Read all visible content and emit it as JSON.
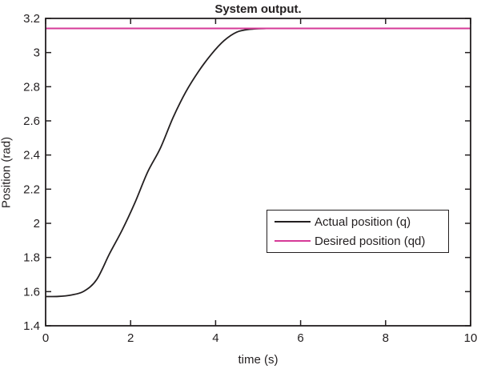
{
  "figure": {
    "title": "System output.",
    "xlabel": "time (s)",
    "ylabel": "Position (rad)"
  },
  "legend": {
    "items": [
      {
        "label": "Actual position (q)",
        "color": "#231f20"
      },
      {
        "label": "Desired position (qd)",
        "color": "#d63a97"
      }
    ]
  },
  "colors": {
    "axis": "#231f20",
    "actual_line": "#231f20",
    "desired_line": "#d63a97",
    "background": "#ffffff"
  },
  "chart_data": {
    "type": "line",
    "title": "System output.",
    "xlabel": "time (s)",
    "ylabel": "Position (rad)",
    "xlim": [
      0,
      10
    ],
    "ylim": [
      1.4,
      3.2
    ],
    "xticks": [
      0,
      2,
      4,
      6,
      8,
      10
    ],
    "yticks": [
      1.4,
      1.6,
      1.8,
      2,
      2.2,
      2.4,
      2.6,
      2.8,
      3,
      3.2
    ],
    "grid": false,
    "legend_position": "middle-right",
    "series": [
      {
        "name": "Actual position (q)",
        "color": "#231f20",
        "x": [
          0,
          0.3,
          0.6,
          0.9,
          1.2,
          1.5,
          1.8,
          2.1,
          2.4,
          2.7,
          3.0,
          3.3,
          3.6,
          3.9,
          4.2,
          4.5,
          4.8,
          5.2,
          6,
          7,
          8,
          9,
          10
        ],
        "y": [
          1.571,
          1.572,
          1.58,
          1.602,
          1.67,
          1.82,
          1.96,
          2.12,
          2.3,
          2.44,
          2.62,
          2.77,
          2.89,
          2.99,
          3.07,
          3.12,
          3.136,
          3.141,
          3.1416,
          3.1416,
          3.1416,
          3.1416,
          3.1416
        ]
      },
      {
        "name": "Desired position (qd)",
        "color": "#d63a97",
        "x": [
          0,
          10
        ],
        "y": [
          3.1416,
          3.1416
        ]
      }
    ]
  }
}
